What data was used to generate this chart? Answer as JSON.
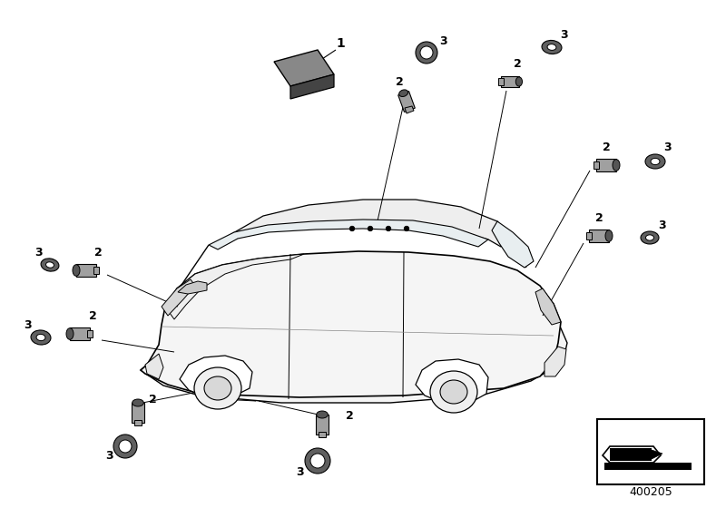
{
  "bg_color": "#ffffff",
  "part_number": "400205",
  "fig_width": 8.0,
  "fig_height": 5.6,
  "car": {
    "body_fc": "#f5f5f5",
    "body_ec": "#000000",
    "roof_fc": "#eeeeee",
    "glass_fc": "#e8eef0",
    "wheel_fc": "#e8e8e8",
    "wheel_ec": "#000000"
  },
  "sensor_body_color": "#a0a0a0",
  "sensor_face_color": "#707070",
  "sensor_dark_color": "#555555",
  "ring_color": "#606060"
}
